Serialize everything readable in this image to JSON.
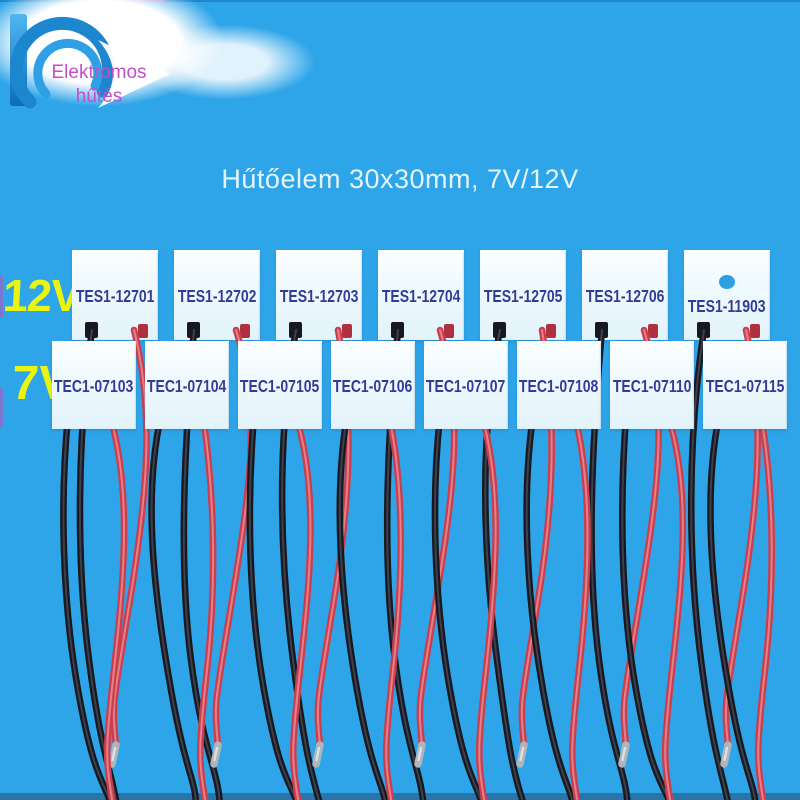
{
  "header": {
    "title": "Hűtőelem 30x30mm, 7V/12V"
  },
  "logo": {
    "line1": "Elektromos",
    "line2": "hűtés"
  },
  "rows": [
    {
      "voltage_label": "12V",
      "modules": [
        "TES1-12701",
        "TES1-12702",
        "TES1-12703",
        "TES1-12704",
        "TES1-12705",
        "TES1-12706",
        "TES1-11903"
      ]
    },
    {
      "voltage_label": "7V",
      "modules": [
        "TEC1-07103",
        "TEC1-07104",
        "TEC1-07105",
        "TEC1-07106",
        "TEC1-07107",
        "TEC1-07108",
        "TEC1-07110",
        "TEC1-07115"
      ]
    }
  ],
  "colors": {
    "page_bg": "#2FA5E9",
    "bottom_bar": "#2B74A8",
    "top_edge": "#1D86CC",
    "module_bg_top": "#FBFEFF",
    "module_bg_bottom": "#E2F3FA",
    "module_text": "#333C94",
    "accent_yellow": "#EAF411",
    "title_text": "#E3F4FB",
    "logo_text": "#C44EC8",
    "logo_blue": "#1C86CF",
    "wire_red": "#C8404F",
    "wire_red_light": "#E57F8A",
    "wire_black": "#181820",
    "wire_black_light": "#3D414B",
    "wire_tip": "#AEB5BC",
    "dot_blue": "#2E9FE3"
  }
}
